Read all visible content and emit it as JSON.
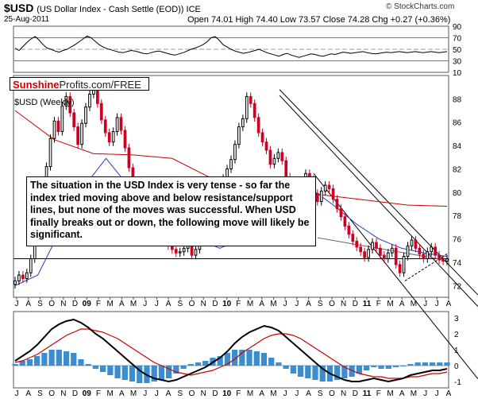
{
  "header": {
    "symbol": "$USD",
    "subtitle": "(US Dollar Index - Cash Settle (EOD)) ICE",
    "date": "25-Aug-2011",
    "ohlc": "Open 74.01  High 74.40  Low 73.57  Close 74.28  Chg +0.27 (+0.36%)",
    "credit": "© StockCharts.com"
  },
  "brand": {
    "part1": "Sunshine",
    "part2": "Profits.com/FREE"
  },
  "price_label": "$USD (Weekly)",
  "commentary": "The situation in the USD Index is very tense - so far the index tried moving above and below resistance/support lines, but none of the moves was successful. When USD finally breaks out or down, the following move will likely be significant.",
  "colors": {
    "up": "#000000",
    "down": "#cc0022",
    "ma_red": "#cc0000",
    "ma_blue": "#3333cc",
    "macd_hist": "#3a8ed0",
    "rsi_fill": "#4a8a3a"
  },
  "chart_data": [
    {
      "type": "line",
      "name": "RSI",
      "ylim": [
        10,
        90
      ],
      "ticks": [
        10,
        30,
        50,
        70,
        90
      ],
      "values": [
        52,
        48,
        55,
        62,
        68,
        72,
        66,
        58,
        52,
        50,
        47,
        45,
        48,
        50,
        54,
        58,
        63,
        68,
        73,
        70,
        64,
        58,
        54,
        51,
        49,
        47,
        45,
        44,
        46,
        48,
        47,
        45,
        43,
        42,
        44,
        46,
        47,
        45,
        43,
        41,
        40,
        42,
        44,
        47,
        50,
        52,
        55,
        58,
        63,
        70,
        72,
        66,
        58,
        54,
        50,
        47,
        45,
        43,
        44,
        46,
        48,
        50,
        47,
        44,
        42,
        40,
        38,
        41,
        43,
        40,
        38,
        36,
        38,
        40,
        42,
        41,
        39,
        38,
        40,
        42,
        41,
        43,
        45,
        44,
        43,
        44,
        45,
        46,
        44,
        43,
        42,
        43,
        44,
        45,
        44,
        45,
        46,
        45,
        44,
        45,
        46,
        45,
        44,
        45,
        46,
        45,
        44,
        45,
        46
      ]
    },
    {
      "type": "bar",
      "name": "$USD (Weekly)",
      "ylim": [
        71,
        90
      ],
      "ticks": [
        72,
        74,
        76,
        78,
        80,
        82,
        84,
        86,
        88
      ],
      "x_ticks": [
        "J",
        "A",
        "S",
        "O",
        "N",
        "D",
        "09",
        "F",
        "M",
        "A",
        "M",
        "J",
        "J",
        "A",
        "S",
        "O",
        "N",
        "D",
        "10",
        "F",
        "M",
        "A",
        "M",
        "J",
        "J",
        "A",
        "S",
        "O",
        "N",
        "D",
        "11",
        "F",
        "M",
        "A",
        "M",
        "J",
        "J",
        "A"
      ],
      "close": [
        72.4,
        72.9,
        72.6,
        73.1,
        74.3,
        76.2,
        78.1,
        80.3,
        82.2,
        84.6,
        86.1,
        85.2,
        87.4,
        88.2,
        86.8,
        85.6,
        84.1,
        85.9,
        87.3,
        88.4,
        89.0,
        87.6,
        86.2,
        85.1,
        84.3,
        85.2,
        86.4,
        85.3,
        83.8,
        82.1,
        80.6,
        79.5,
        79.1,
        78.4,
        77.9,
        77.3,
        76.8,
        76.2,
        75.8,
        75.4,
        75.1,
        74.8,
        74.9,
        75.2,
        75.5,
        74.6,
        75.1,
        75.9,
        76.4,
        77.2,
        78.1,
        79.4,
        80.6,
        81.2,
        82.0,
        82.8,
        84.1,
        85.6,
        86.3,
        88.2,
        87.6,
        86.4,
        85.1,
        84.3,
        83.6,
        82.4,
        82.9,
        83.4,
        82.7,
        81.3,
        80.1,
        78.6,
        79.8,
        80.9,
        81.6,
        81.1,
        79.9,
        79.2,
        80.1,
        80.6,
        80.3,
        79.4,
        78.6,
        77.9,
        77.1,
        76.4,
        75.8,
        75.3,
        74.9,
        74.4,
        75.1,
        75.7,
        75.2,
        74.6,
        74.3,
        74.8,
        75.2,
        73.8,
        73.1,
        74.5,
        75.4,
        75.9,
        75.2,
        74.7,
        74.3,
        74.9,
        75.3,
        74.6,
        74.2,
        74.1,
        74.28
      ],
      "sma_red": [
        87.0,
        84.5,
        83.3,
        83.2,
        82.9,
        81.2,
        80.5,
        80.1,
        79.7,
        79.3,
        78.9,
        78.8
      ],
      "sma_blue": [
        72.0,
        72.9,
        76.8,
        80.4,
        82.9,
        80.5,
        78.2,
        77.0,
        76.0,
        75.2,
        76.0,
        79.5,
        80.6,
        80.3,
        78.9,
        77.3,
        76.0,
        75.2,
        74.8,
        74.5
      ]
    },
    {
      "type": "line",
      "name": "MACD",
      "ylim": [
        -1.4,
        3.4
      ],
      "ticks": [
        -1,
        0,
        1,
        2,
        3
      ],
      "macd": [
        0.3,
        0.6,
        0.9,
        1.3,
        1.8,
        2.3,
        2.6,
        2.8,
        2.9,
        2.7,
        2.4,
        2.0,
        1.7,
        1.3,
        0.9,
        0.5,
        0.1,
        -0.3,
        -0.6,
        -0.8,
        -0.9,
        -1.0,
        -0.9,
        -0.7,
        -0.5,
        -0.3,
        -0.1,
        0.2,
        0.5,
        0.9,
        1.4,
        1.8,
        2.1,
        2.3,
        2.5,
        2.4,
        2.2,
        1.8,
        1.4,
        1.0,
        0.6,
        0.2,
        -0.2,
        -0.5,
        -0.7,
        -0.9,
        -1.0,
        -1.0,
        -0.9,
        -0.8,
        -0.9,
        -1.0,
        -0.9,
        -0.8,
        -0.6,
        -0.5,
        -0.4,
        -0.3,
        -0.3,
        -0.2
      ],
      "signal": [
        0.2,
        0.3,
        0.5,
        0.7,
        1.0,
        1.3,
        1.6,
        1.9,
        2.1,
        2.3,
        2.3,
        2.2,
        2.1,
        1.9,
        1.7,
        1.4,
        1.1,
        0.8,
        0.5,
        0.2,
        0.0,
        -0.2,
        -0.4,
        -0.5,
        -0.6,
        -0.5,
        -0.4,
        -0.3,
        -0.1,
        0.1,
        0.4,
        0.8,
        1.1,
        1.4,
        1.7,
        1.9,
        2.0,
        2.0,
        1.9,
        1.7,
        1.4,
        1.1,
        0.8,
        0.5,
        0.2,
        -0.1,
        -0.3,
        -0.5,
        -0.6,
        -0.7,
        -0.7,
        -0.8,
        -0.8,
        -0.8,
        -0.7,
        -0.7,
        -0.6,
        -0.5,
        -0.5,
        -0.4
      ]
    }
  ]
}
